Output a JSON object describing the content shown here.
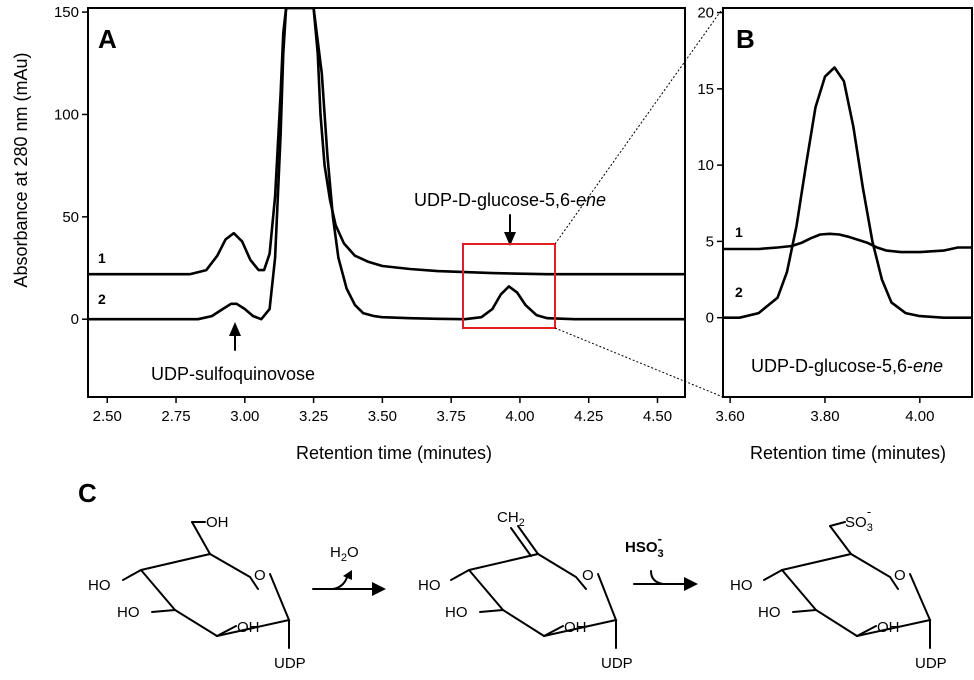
{
  "chart_data": [
    {
      "panel": "A",
      "type": "line",
      "xlabel": "Retention time (minutes)",
      "ylabel": "Absorbance at 280 nm (mAu)",
      "xlim": [
        2.43,
        4.6
      ],
      "ylim": [
        -38,
        152
      ],
      "x_ticks": [
        2.5,
        2.75,
        3.0,
        3.25,
        3.5,
        3.75,
        4.0,
        4.25,
        4.5
      ],
      "x_tick_labels": [
        "2.50",
        "2.75",
        "3.00",
        "3.25",
        "3.50",
        "3.75",
        "4.00",
        "4.25",
        "4.50"
      ],
      "y_ticks": [
        0,
        50,
        100,
        150
      ],
      "y_tick_labels": [
        "0",
        "50",
        "100",
        "150"
      ],
      "series": [
        {
          "name": "1",
          "x": [
            2.43,
            2.8,
            2.86,
            2.9,
            2.93,
            2.96,
            2.99,
            3.02,
            3.05,
            3.07,
            3.09,
            3.11,
            3.13,
            3.14,
            3.15,
            3.25,
            3.265,
            3.275,
            3.29,
            3.31,
            3.33,
            3.36,
            3.4,
            3.45,
            3.5,
            3.6,
            3.7,
            3.8,
            3.9,
            4.0,
            4.1,
            4.2,
            4.3,
            4.6
          ],
          "y": [
            22,
            22,
            24,
            31,
            39,
            42,
            38,
            29,
            24,
            24,
            32,
            60,
            110,
            140,
            152,
            152,
            130,
            100,
            75,
            58,
            46,
            37,
            31,
            28,
            26,
            24.5,
            23.5,
            23,
            22.5,
            22.2,
            22,
            22,
            22,
            22
          ]
        },
        {
          "name": "2",
          "x": [
            2.43,
            2.83,
            2.88,
            2.92,
            2.95,
            2.97,
            3.0,
            3.03,
            3.06,
            3.09,
            3.11,
            3.13,
            3.14,
            3.15,
            3.25,
            3.28,
            3.3,
            3.32,
            3.34,
            3.37,
            3.4,
            3.43,
            3.47,
            3.5,
            3.6,
            3.7,
            3.8,
            3.86,
            3.9,
            3.93,
            3.96,
            3.99,
            4.02,
            4.06,
            4.1,
            4.2,
            4.6
          ],
          "y": [
            0,
            0,
            1.5,
            5,
            7.5,
            7.5,
            5,
            1.5,
            0,
            5,
            30,
            90,
            130,
            152,
            152,
            120,
            80,
            50,
            30,
            15,
            7,
            3,
            1.5,
            1,
            0.5,
            0.2,
            0,
            1,
            5,
            12,
            16,
            13,
            7,
            2,
            0.5,
            0,
            0
          ]
        }
      ]
    },
    {
      "panel": "B",
      "type": "line",
      "xlabel": "Retention time (minutes)",
      "ylabel": "",
      "xlim": [
        3.585,
        4.11
      ],
      "ylim": [
        -5.2,
        20.3
      ],
      "x_ticks": [
        3.6,
        3.8,
        4.0
      ],
      "x_tick_labels": [
        "3.60",
        "3.80",
        "4.00"
      ],
      "y_ticks": [
        0,
        5,
        10,
        15,
        20
      ],
      "y_tick_labels": [
        "0",
        "5",
        "10",
        "15",
        "20"
      ],
      "series": [
        {
          "name": "1",
          "x": [
            3.585,
            3.62,
            3.66,
            3.7,
            3.73,
            3.75,
            3.77,
            3.79,
            3.81,
            3.83,
            3.85,
            3.87,
            3.89,
            3.91,
            3.93,
            3.96,
            4.0,
            4.05,
            4.08,
            4.11
          ],
          "y": [
            4.5,
            4.5,
            4.5,
            4.6,
            4.7,
            4.9,
            5.2,
            5.45,
            5.5,
            5.45,
            5.3,
            5.1,
            4.9,
            4.6,
            4.4,
            4.3,
            4.3,
            4.4,
            4.6,
            4.6
          ]
        },
        {
          "name": "2",
          "x": [
            3.585,
            3.62,
            3.66,
            3.7,
            3.72,
            3.74,
            3.76,
            3.78,
            3.8,
            3.82,
            3.84,
            3.86,
            3.88,
            3.9,
            3.92,
            3.94,
            3.97,
            4.0,
            4.05,
            4.11
          ],
          "y": [
            0,
            0,
            0.3,
            1.3,
            3,
            6,
            10,
            13.8,
            15.8,
            16.4,
            15.5,
            12.5,
            8.5,
            5,
            2.5,
            1,
            0.3,
            0.1,
            0,
            0
          ]
        }
      ]
    }
  ],
  "figure_text": {
    "panel_a": "A",
    "panel_b": "B",
    "panel_c": "C",
    "annotation_ene_a": "UDP-D-glucose-5,6-",
    "annotation_ene_a_italic": "ene",
    "annotation_sq": "UDP-sulfoquinovose",
    "annotation_ene_b": "UDP-D-glucose-5,6-",
    "annotation_ene_b_italic": "ene",
    "trace_label_1": "1",
    "trace_label_2": "2"
  },
  "scheme": {
    "reagent_1": "H2O",
    "reagent_1_main": "H",
    "reagent_1_sub": "2",
    "reagent_1_tail": "O",
    "reagent_2_main": "HSO",
    "reagent_2_sub": "3",
    "reagent_2_sup": "-",
    "mol1_oh_c6": "OH",
    "mol1_ho_c4": "HO",
    "mol1_ho_c3": "HO",
    "mol1_oh_c2": "OH",
    "mol1_o_ring": "O",
    "mol1_udp": "UDP",
    "mol2_ch2": "CH",
    "mol2_ch2_sub": "2",
    "mol2_ho_c4": "HO",
    "mol2_ho_c3": "HO",
    "mol2_oh_c2": "OH",
    "mol2_o_ring": "O",
    "mol2_udp": "UDP",
    "mol3_so3": "SO",
    "mol3_so3_sub": "3",
    "mol3_so3_sup": "-",
    "mol3_ho_c4": "HO",
    "mol3_ho_c3": "HO",
    "mol3_oh_c2": "OH",
    "mol3_o_ring": "O",
    "mol3_udp": "UDP"
  }
}
